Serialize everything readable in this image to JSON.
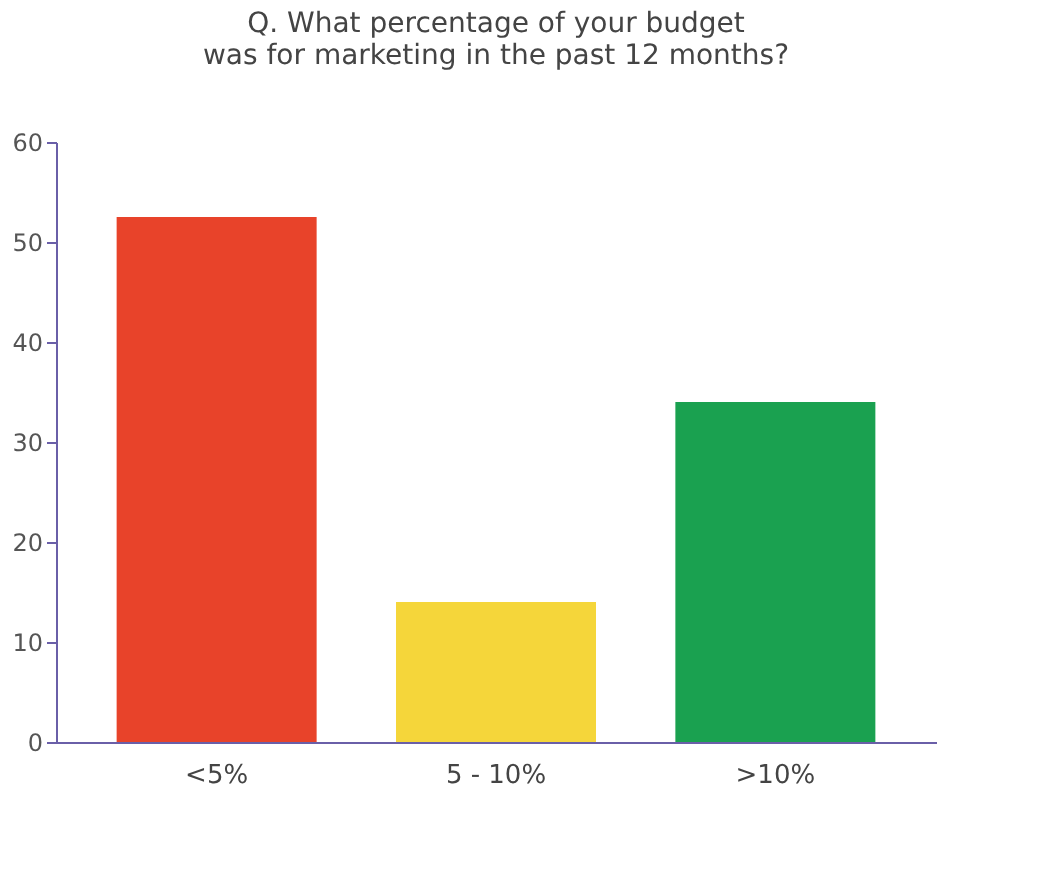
{
  "chart_data": {
    "type": "bar",
    "title": "Q. What percentage of your budget was for marketing in the past 12 months?",
    "categories": [
      "<5%",
      "5 - 10%",
      ">10%"
    ],
    "values": [
      52.5,
      14,
      34
    ],
    "colors": [
      "#e8432a",
      "#f5d63a",
      "#1aa150"
    ],
    "ylim": [
      0,
      60
    ],
    "yticks": [
      0,
      10,
      20,
      30,
      40,
      50,
      60
    ],
    "grid": false
  }
}
